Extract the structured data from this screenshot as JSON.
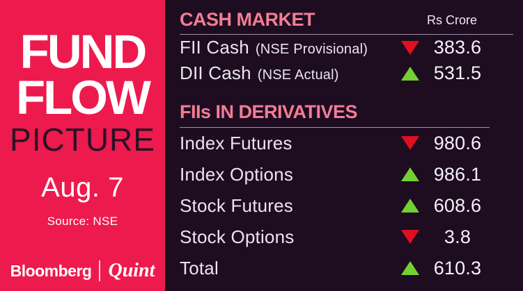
{
  "left_panel": {
    "bg_color": "#ED1A4D",
    "title_line1": "FUND",
    "title_line2": "FLOW",
    "title_line3": "PICTURE",
    "date": "Aug. 7",
    "source": "Source: NSE",
    "brand": {
      "bloomberg": "Bloomberg",
      "quint": "Quint"
    }
  },
  "main": {
    "bg_color": "#1E0C21",
    "unit_label": "Rs Crore",
    "colors": {
      "up": "#72D12F",
      "down": "#DE0F1F",
      "header_pink": "#F27D95"
    },
    "sections": [
      {
        "title": "CASH MARKET",
        "rows": [
          {
            "label": "FII Cash",
            "sublabel": "(NSE Provisional)",
            "direction": "down",
            "value": "383.6"
          },
          {
            "label": "DII Cash",
            "sublabel": "(NSE Actual)",
            "direction": "up",
            "value": "531.5"
          }
        ]
      },
      {
        "title": "FIIs IN DERIVATIVES",
        "rows": [
          {
            "label": "Index Futures",
            "direction": "down",
            "value": "980.6"
          },
          {
            "label": "Index Options",
            "direction": "up",
            "value": "986.1"
          },
          {
            "label": "Stock Futures",
            "direction": "up",
            "value": "608.6"
          },
          {
            "label": "Stock Options",
            "direction": "down",
            "value": "3.8"
          },
          {
            "label": "Total",
            "direction": "up",
            "value": "610.3"
          }
        ]
      }
    ]
  }
}
